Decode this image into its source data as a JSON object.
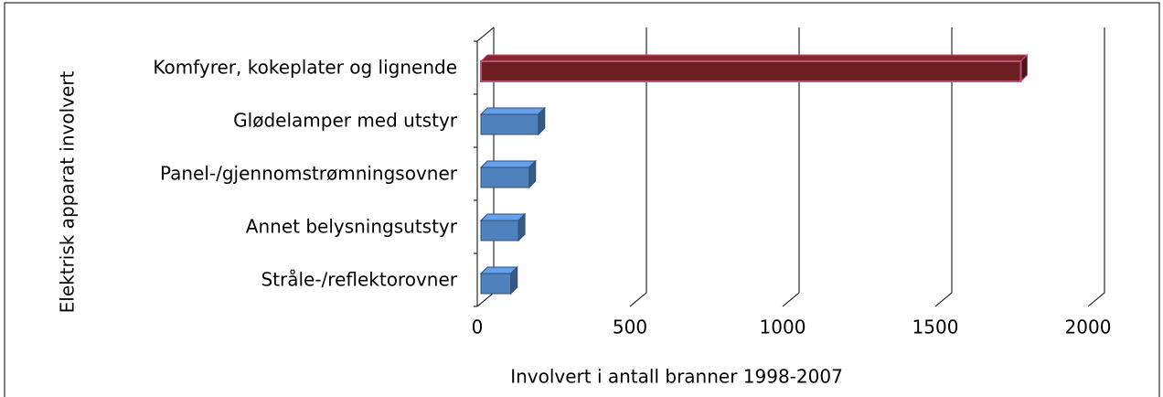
{
  "chart_data": {
    "type": "bar",
    "orientation": "horizontal",
    "categories": [
      "Komfyrer, kokeplater og lignende",
      "Glødelamper med utstyr",
      "Panel-/gjennomstrømningsovner",
      "Annet belysningsutstyr",
      "Stråle-/reflektorovner"
    ],
    "values": [
      1780,
      200,
      170,
      135,
      110
    ],
    "colors": [
      "#6e1f22",
      "#4f81bd",
      "#4f81bd",
      "#4f81bd",
      "#4f81bd"
    ],
    "xlabel": "Involvert i antall branner 1998-2007",
    "ylabel": "Elektrisk apparat involvert",
    "xlim": [
      0,
      2000
    ],
    "xticks": [
      0,
      500,
      1000,
      1500,
      2000
    ],
    "grid": true
  }
}
